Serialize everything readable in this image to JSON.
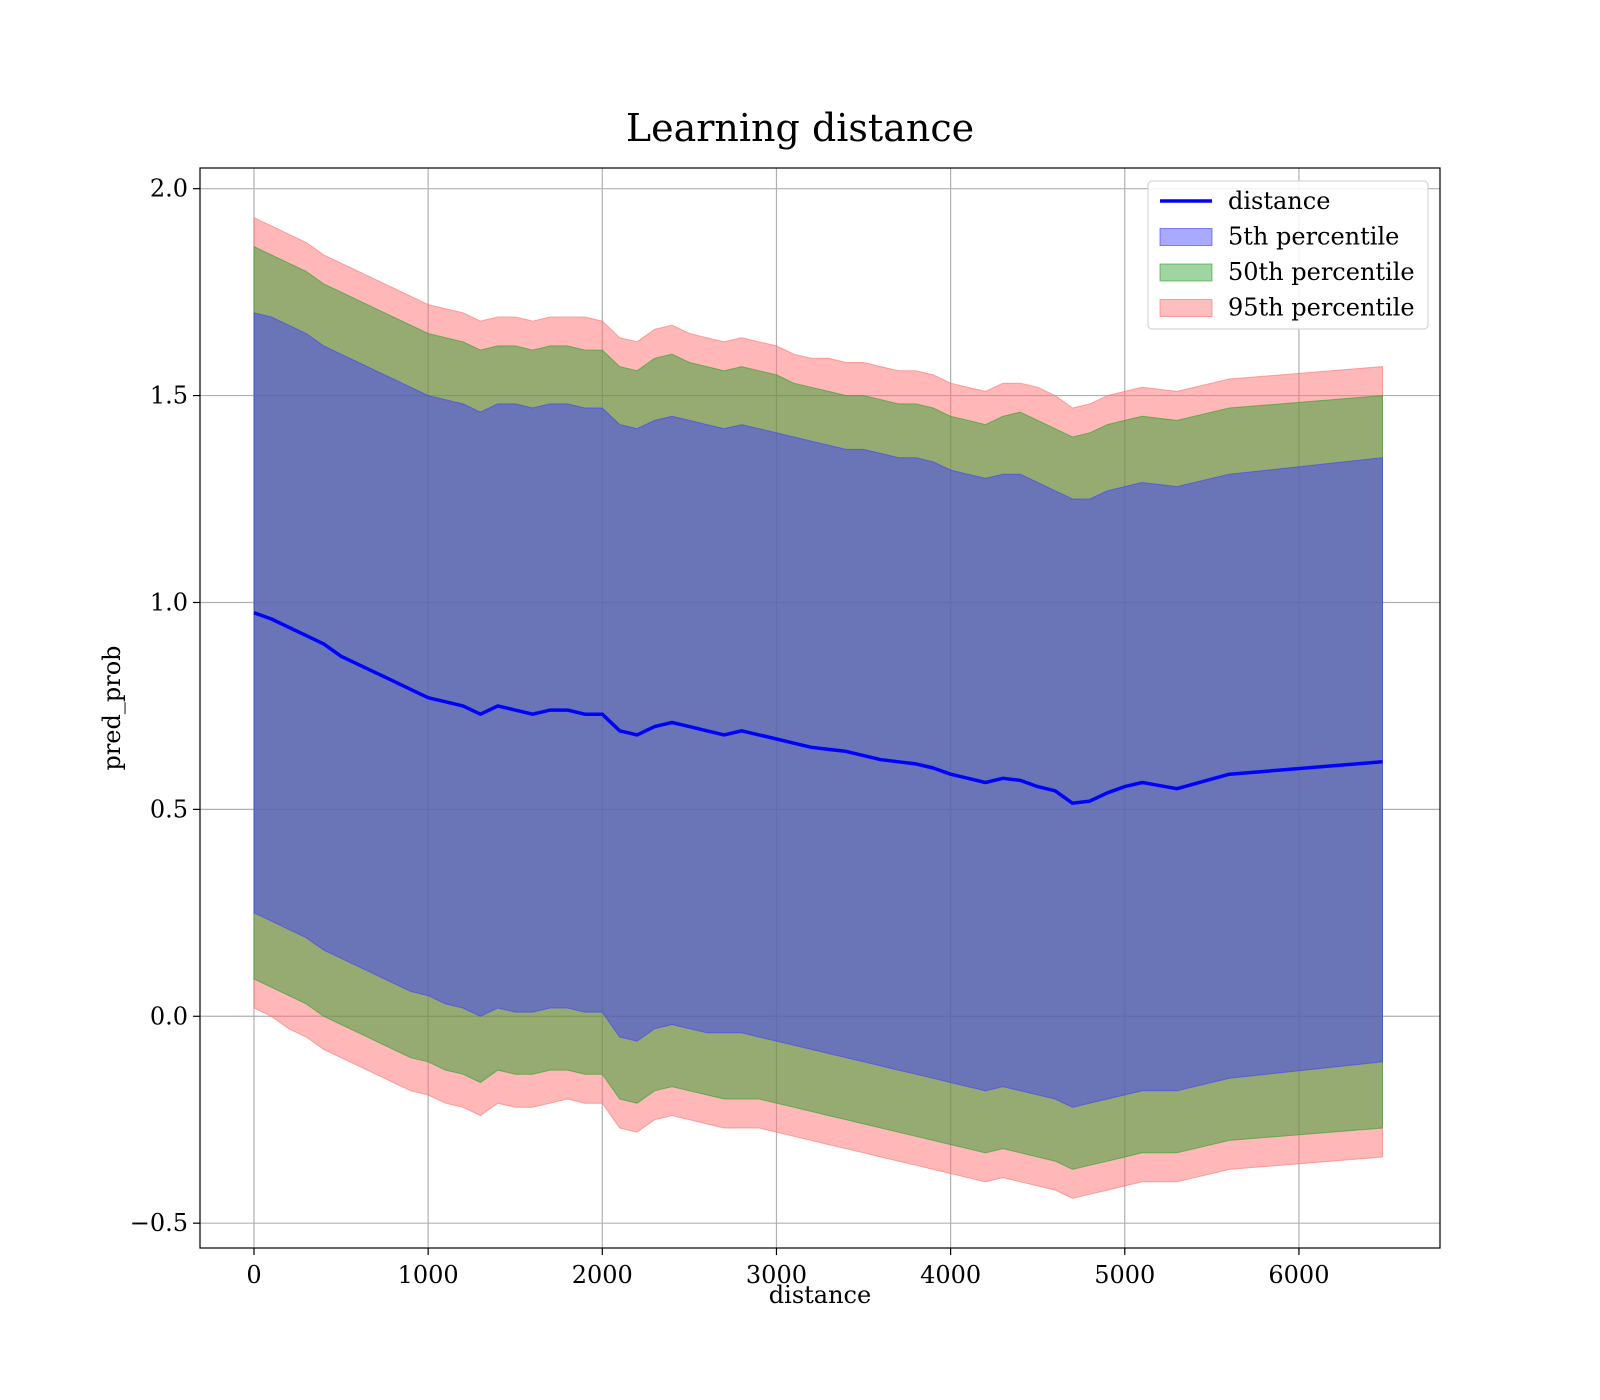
{
  "chart_data": {
    "type": "area",
    "title": "Learning distance",
    "xlabel": "distance",
    "ylabel": "pred_prob",
    "xlim": [
      -310,
      6810
    ],
    "ylim": [
      -0.56,
      2.05
    ],
    "xticks": [
      0,
      1000,
      2000,
      3000,
      4000,
      5000,
      6000
    ],
    "xtick_labels": [
      "0",
      "1000",
      "2000",
      "3000",
      "4000",
      "5000",
      "6000"
    ],
    "yticks": [
      -0.5,
      0.0,
      0.5,
      1.0,
      1.5,
      2.0
    ],
    "ytick_labels": [
      "−0.5",
      "0.0",
      "0.5",
      "1.0",
      "1.5",
      "2.0"
    ],
    "grid": true,
    "legend_position": "top-right",
    "x": [
      0,
      100,
      200,
      300,
      400,
      500,
      600,
      700,
      800,
      900,
      1000,
      1100,
      1200,
      1300,
      1400,
      1500,
      1600,
      1700,
      1800,
      1900,
      2000,
      2100,
      2200,
      2300,
      2400,
      2500,
      2600,
      2700,
      2800,
      2900,
      3000,
      3100,
      3200,
      3300,
      3400,
      3500,
      3600,
      3700,
      3800,
      3900,
      4000,
      4100,
      4200,
      4300,
      4400,
      4500,
      4600,
      4700,
      4800,
      4900,
      5000,
      5100,
      5300,
      5600,
      6480
    ],
    "line": {
      "name": "distance",
      "color": "#0000ff",
      "values": [
        0.975,
        0.96,
        0.94,
        0.92,
        0.9,
        0.87,
        0.85,
        0.83,
        0.81,
        0.79,
        0.77,
        0.76,
        0.75,
        0.73,
        0.75,
        0.74,
        0.73,
        0.74,
        0.74,
        0.73,
        0.73,
        0.69,
        0.68,
        0.7,
        0.71,
        0.7,
        0.69,
        0.68,
        0.69,
        0.68,
        0.67,
        0.66,
        0.65,
        0.645,
        0.64,
        0.63,
        0.62,
        0.615,
        0.61,
        0.6,
        0.585,
        0.575,
        0.565,
        0.575,
        0.57,
        0.555,
        0.545,
        0.515,
        0.52,
        0.54,
        0.555,
        0.565,
        0.55,
        0.585,
        0.615
      ]
    },
    "series": [
      {
        "name": "95th percentile",
        "color": "#ff6f6f",
        "upper": [
          1.93,
          1.91,
          1.89,
          1.87,
          1.84,
          1.82,
          1.8,
          1.78,
          1.76,
          1.74,
          1.72,
          1.71,
          1.7,
          1.68,
          1.69,
          1.69,
          1.68,
          1.69,
          1.69,
          1.69,
          1.68,
          1.64,
          1.63,
          1.66,
          1.67,
          1.65,
          1.64,
          1.63,
          1.64,
          1.63,
          1.62,
          1.6,
          1.59,
          1.59,
          1.58,
          1.58,
          1.57,
          1.56,
          1.56,
          1.55,
          1.53,
          1.52,
          1.51,
          1.53,
          1.53,
          1.52,
          1.5,
          1.47,
          1.48,
          1.5,
          1.51,
          1.52,
          1.51,
          1.54,
          1.57
        ],
        "lower": [
          0.02,
          0.0,
          -0.03,
          -0.05,
          -0.08,
          -0.1,
          -0.12,
          -0.14,
          -0.16,
          -0.18,
          -0.19,
          -0.21,
          -0.22,
          -0.24,
          -0.21,
          -0.22,
          -0.22,
          -0.21,
          -0.2,
          -0.21,
          -0.21,
          -0.27,
          -0.28,
          -0.25,
          -0.24,
          -0.25,
          -0.26,
          -0.27,
          -0.27,
          -0.27,
          -0.28,
          -0.29,
          -0.3,
          -0.31,
          -0.32,
          -0.33,
          -0.34,
          -0.35,
          -0.36,
          -0.37,
          -0.38,
          -0.39,
          -0.4,
          -0.39,
          -0.4,
          -0.41,
          -0.42,
          -0.44,
          -0.43,
          -0.42,
          -0.41,
          -0.4,
          -0.4,
          -0.37,
          -0.34
        ]
      },
      {
        "name": "50th percentile",
        "color": "#2ca02c",
        "upper": [
          1.86,
          1.84,
          1.82,
          1.8,
          1.77,
          1.75,
          1.73,
          1.71,
          1.69,
          1.67,
          1.65,
          1.64,
          1.63,
          1.61,
          1.62,
          1.62,
          1.61,
          1.62,
          1.62,
          1.61,
          1.61,
          1.57,
          1.56,
          1.59,
          1.6,
          1.58,
          1.57,
          1.56,
          1.57,
          1.56,
          1.55,
          1.53,
          1.52,
          1.51,
          1.5,
          1.5,
          1.49,
          1.48,
          1.48,
          1.47,
          1.45,
          1.44,
          1.43,
          1.45,
          1.46,
          1.44,
          1.42,
          1.4,
          1.41,
          1.43,
          1.44,
          1.45,
          1.44,
          1.47,
          1.5
        ],
        "lower": [
          0.09,
          0.07,
          0.05,
          0.03,
          0.0,
          -0.02,
          -0.04,
          -0.06,
          -0.08,
          -0.1,
          -0.11,
          -0.13,
          -0.14,
          -0.16,
          -0.13,
          -0.14,
          -0.14,
          -0.13,
          -0.13,
          -0.14,
          -0.14,
          -0.2,
          -0.21,
          -0.18,
          -0.17,
          -0.18,
          -0.19,
          -0.2,
          -0.2,
          -0.2,
          -0.21,
          -0.22,
          -0.23,
          -0.24,
          -0.25,
          -0.26,
          -0.27,
          -0.28,
          -0.29,
          -0.3,
          -0.31,
          -0.32,
          -0.33,
          -0.32,
          -0.33,
          -0.34,
          -0.35,
          -0.37,
          -0.36,
          -0.35,
          -0.34,
          -0.33,
          -0.33,
          -0.3,
          -0.27
        ]
      },
      {
        "name": "5th percentile",
        "color": "#4040ff",
        "upper": [
          1.7,
          1.69,
          1.67,
          1.65,
          1.62,
          1.6,
          1.58,
          1.56,
          1.54,
          1.52,
          1.5,
          1.49,
          1.48,
          1.46,
          1.48,
          1.48,
          1.47,
          1.48,
          1.48,
          1.47,
          1.47,
          1.43,
          1.42,
          1.44,
          1.45,
          1.44,
          1.43,
          1.42,
          1.43,
          1.42,
          1.41,
          1.4,
          1.39,
          1.38,
          1.37,
          1.37,
          1.36,
          1.35,
          1.35,
          1.34,
          1.32,
          1.31,
          1.3,
          1.31,
          1.31,
          1.29,
          1.27,
          1.25,
          1.25,
          1.27,
          1.28,
          1.29,
          1.28,
          1.31,
          1.35
        ],
        "lower": [
          0.25,
          0.23,
          0.21,
          0.19,
          0.16,
          0.14,
          0.12,
          0.1,
          0.08,
          0.06,
          0.05,
          0.03,
          0.02,
          0.0,
          0.02,
          0.01,
          0.01,
          0.02,
          0.02,
          0.01,
          0.01,
          -0.05,
          -0.06,
          -0.03,
          -0.02,
          -0.03,
          -0.04,
          -0.04,
          -0.04,
          -0.05,
          -0.06,
          -0.07,
          -0.08,
          -0.09,
          -0.1,
          -0.11,
          -0.12,
          -0.13,
          -0.14,
          -0.15,
          -0.16,
          -0.17,
          -0.18,
          -0.17,
          -0.18,
          -0.19,
          -0.2,
          -0.22,
          -0.21,
          -0.2,
          -0.19,
          -0.18,
          -0.18,
          -0.15,
          -0.11
        ]
      }
    ],
    "legend": [
      {
        "label": "distance",
        "kind": "line",
        "color": "#0000ff"
      },
      {
        "label": "5th percentile",
        "kind": "patch",
        "color": "#4040ff"
      },
      {
        "label": "50th percentile",
        "kind": "patch",
        "color": "#2ca02c"
      },
      {
        "label": "95th percentile",
        "kind": "patch",
        "color": "#ff6f6f"
      }
    ]
  }
}
